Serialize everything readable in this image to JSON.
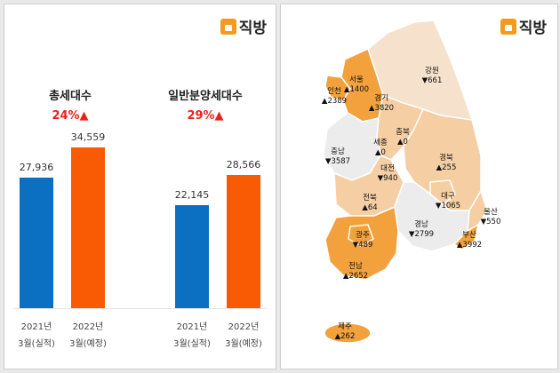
{
  "brand": {
    "name": "직방",
    "logo_color": "#f29b1c"
  },
  "chart_data": {
    "type": "bar",
    "groups": [
      {
        "title": "총세대수",
        "change": "24%▲",
        "categories": [
          {
            "line1": "2021년",
            "line2": "3월(실적)"
          },
          {
            "line1": "2022년",
            "line2": "3월(예정)"
          }
        ],
        "values": [
          27936,
          34559
        ],
        "value_labels": [
          "27,936",
          "34,559"
        ]
      },
      {
        "title": "일반분양세대수",
        "change": "29%▲",
        "categories": [
          {
            "line1": "2021년",
            "line2": "3월(실적)"
          },
          {
            "line1": "2022년",
            "line2": "3월(예정)"
          }
        ],
        "values": [
          22145,
          28566
        ],
        "value_labels": [
          "22,145",
          "28,566"
        ]
      }
    ],
    "colors": [
      "#0b6fc2",
      "#f95b05"
    ],
    "ylim": [
      0,
      40000
    ],
    "grid": true
  },
  "map": {
    "colors": {
      "high": "#f2a13c",
      "mid": "#f5cfa3",
      "low": "#f6e2cc",
      "none": "#ececec"
    },
    "regions": [
      {
        "name": "서울",
        "value": "▲1400"
      },
      {
        "name": "인천",
        "value": "▲2389"
      },
      {
        "name": "경기",
        "value": "▲3820"
      },
      {
        "name": "강원",
        "value": "▼661"
      },
      {
        "name": "충북",
        "value": "▲0"
      },
      {
        "name": "세종",
        "value": "▲0"
      },
      {
        "name": "충남",
        "value": "▼3587"
      },
      {
        "name": "대전",
        "value": "▼940"
      },
      {
        "name": "경북",
        "value": "▲255"
      },
      {
        "name": "전북",
        "value": "▲64"
      },
      {
        "name": "대구",
        "value": "▼1065"
      },
      {
        "name": "울산",
        "value": "▼550"
      },
      {
        "name": "경남",
        "value": "▼2799"
      },
      {
        "name": "부산",
        "value": "▲3992"
      },
      {
        "name": "광주",
        "value": "▼489"
      },
      {
        "name": "전남",
        "value": "▲2652"
      },
      {
        "name": "제주",
        "value": "▲262"
      }
    ]
  }
}
